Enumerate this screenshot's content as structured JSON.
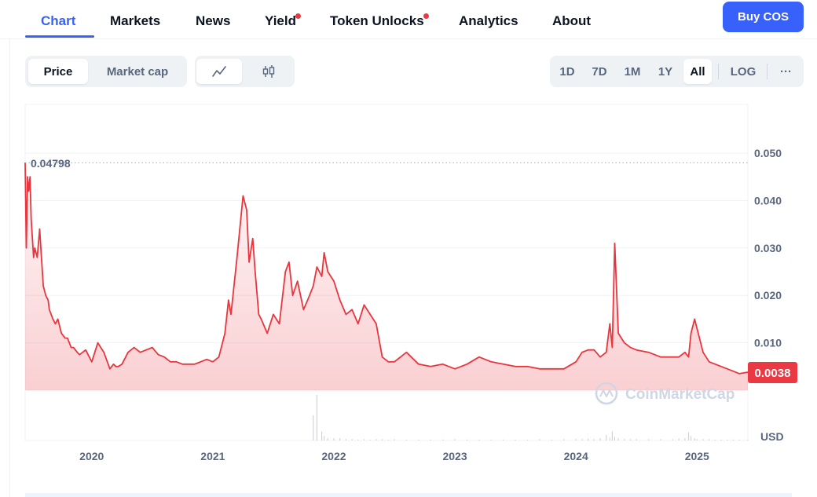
{
  "nav": {
    "tabs": [
      {
        "label": "Chart",
        "active": true,
        "dot": false
      },
      {
        "label": "Markets",
        "active": false,
        "dot": false
      },
      {
        "label": "News",
        "active": false,
        "dot": false
      },
      {
        "label": "Yield",
        "active": false,
        "dot": true
      },
      {
        "label": "Token Unlocks",
        "active": false,
        "dot": true
      },
      {
        "label": "Analytics",
        "active": false,
        "dot": false
      },
      {
        "label": "About",
        "active": false,
        "dot": false
      }
    ],
    "buy_label": "Buy COS"
  },
  "toolbar": {
    "metric_tabs": [
      {
        "label": "Price",
        "active": true
      },
      {
        "label": "Market cap",
        "active": false
      }
    ],
    "chart_types": [
      {
        "icon": "line-chart-icon",
        "active": true
      },
      {
        "icon": "candlestick-icon",
        "active": false
      }
    ],
    "ranges": [
      {
        "label": "1D",
        "active": false
      },
      {
        "label": "7D",
        "active": false
      },
      {
        "label": "1M",
        "active": false
      },
      {
        "label": "1Y",
        "active": false
      },
      {
        "label": "All",
        "active": true
      }
    ],
    "log_label": "LOG",
    "more_label": "···"
  },
  "colors": {
    "accent": "#3861fb",
    "line": "#e8363f",
    "badge": "#ea3943",
    "notification": "#ea3943"
  },
  "watermark": "CoinMarketCap",
  "chart_data": {
    "type": "area",
    "currency_label": "USD",
    "start_marker": {
      "value": 0.04798,
      "label": "0.04798"
    },
    "current_price": {
      "value": 0.0038,
      "label": "0.0038"
    },
    "ylim": [
      0,
      0.05
    ],
    "y_ticks": [
      "0.050",
      "0.040",
      "0.030",
      "0.020",
      "0.010"
    ],
    "x_ticks": [
      "2020",
      "2021",
      "2022",
      "2023",
      "2024",
      "2025"
    ],
    "x": [
      2019.45,
      2019.46,
      2019.47,
      2019.48,
      2019.49,
      2019.5,
      2019.52,
      2019.53,
      2019.55,
      2019.57,
      2019.58,
      2019.6,
      2019.62,
      2019.64,
      2019.65,
      2019.68,
      2019.7,
      2019.72,
      2019.75,
      2019.78,
      2019.8,
      2019.83,
      2019.85,
      2019.88,
      2019.9,
      2019.95,
      2020.0,
      2020.05,
      2020.1,
      2020.15,
      2020.18,
      2020.2,
      2020.22,
      2020.25,
      2020.3,
      2020.35,
      2020.4,
      2020.45,
      2020.5,
      2020.55,
      2020.6,
      2020.65,
      2020.7,
      2020.75,
      2020.8,
      2020.85,
      2020.9,
      2020.95,
      2021.0,
      2021.05,
      2021.1,
      2021.13,
      2021.15,
      2021.2,
      2021.25,
      2021.28,
      2021.3,
      2021.33,
      2021.35,
      2021.38,
      2021.4,
      2021.45,
      2021.5,
      2021.55,
      2021.6,
      2021.63,
      2021.66,
      2021.7,
      2021.75,
      2021.8,
      2021.83,
      2021.86,
      2021.9,
      2021.92,
      2021.95,
      2022.0,
      2022.05,
      2022.1,
      2022.15,
      2022.2,
      2022.25,
      2022.3,
      2022.35,
      2022.4,
      2022.45,
      2022.5,
      2022.6,
      2022.7,
      2022.8,
      2022.9,
      2023.0,
      2023.1,
      2023.2,
      2023.3,
      2023.4,
      2023.5,
      2023.6,
      2023.7,
      2023.8,
      2023.9,
      2024.0,
      2024.05,
      2024.1,
      2024.15,
      2024.2,
      2024.25,
      2024.28,
      2024.3,
      2024.32,
      2024.35,
      2024.4,
      2024.45,
      2024.5,
      2024.6,
      2024.7,
      2024.8,
      2024.85,
      2024.9,
      2024.93,
      2024.95,
      2024.98,
      2025.0,
      2025.05,
      2025.1,
      2025.15,
      2025.2,
      2025.25,
      2025.3,
      2025.35,
      2025.42
    ],
    "values": [
      0.048,
      0.03,
      0.045,
      0.042,
      0.045,
      0.036,
      0.028,
      0.03,
      0.028,
      0.034,
      0.03,
      0.022,
      0.02,
      0.019,
      0.017,
      0.015,
      0.014,
      0.015,
      0.012,
      0.011,
      0.011,
      0.009,
      0.009,
      0.008,
      0.0075,
      0.0085,
      0.006,
      0.01,
      0.008,
      0.0045,
      0.0055,
      0.005,
      0.005,
      0.0055,
      0.008,
      0.009,
      0.008,
      0.0085,
      0.009,
      0.0075,
      0.007,
      0.006,
      0.006,
      0.0055,
      0.0055,
      0.0055,
      0.006,
      0.0065,
      0.006,
      0.007,
      0.012,
      0.019,
      0.016,
      0.028,
      0.041,
      0.038,
      0.027,
      0.032,
      0.025,
      0.016,
      0.015,
      0.012,
      0.016,
      0.014,
      0.025,
      0.027,
      0.02,
      0.023,
      0.017,
      0.02,
      0.022,
      0.026,
      0.024,
      0.029,
      0.025,
      0.023,
      0.019,
      0.016,
      0.017,
      0.014,
      0.018,
      0.016,
      0.014,
      0.007,
      0.006,
      0.006,
      0.008,
      0.0055,
      0.005,
      0.0055,
      0.0045,
      0.0055,
      0.007,
      0.006,
      0.0055,
      0.005,
      0.005,
      0.0045,
      0.0045,
      0.0045,
      0.006,
      0.008,
      0.0085,
      0.0085,
      0.007,
      0.008,
      0.014,
      0.009,
      0.031,
      0.012,
      0.01,
      0.009,
      0.0085,
      0.008,
      0.007,
      0.007,
      0.007,
      0.008,
      0.007,
      0.012,
      0.015,
      0.013,
      0.008,
      0.006,
      0.0055,
      0.005,
      0.0045,
      0.004,
      0.0035,
      0.0038
    ],
    "volume": [
      0,
      0,
      0,
      0,
      0,
      0,
      0,
      0,
      0,
      0,
      0,
      0,
      0,
      0,
      0,
      0,
      0,
      0,
      0,
      0,
      0,
      0,
      0,
      0,
      0,
      0,
      0,
      0,
      0,
      0,
      0,
      0,
      0,
      0,
      0,
      0,
      0,
      0,
      0,
      0,
      0,
      0,
      0,
      0,
      0,
      0,
      0,
      0,
      0,
      0,
      0,
      0,
      0,
      0,
      0,
      0,
      0,
      0,
      0,
      0,
      0,
      0,
      0,
      0,
      0,
      0,
      0,
      0,
      0,
      0,
      0.55,
      1.0,
      0.2,
      0.1,
      0.05,
      0.05,
      0.05,
      0.03,
      0.03,
      0.02,
      0.03,
      0.02,
      0.03,
      0.03,
      0.02,
      0.03,
      0.02,
      0.02,
      0.02,
      0.02,
      0.03,
      0.02,
      0.02,
      0.02,
      0.02,
      0.02,
      0.02,
      0.03,
      0.02,
      0.03,
      0.03,
      0.03,
      0.04,
      0.03,
      0.05,
      0.12,
      0.06,
      0.2,
      0.08,
      0.05,
      0.03,
      0.03,
      0.03,
      0.03,
      0.03,
      0.03,
      0.04,
      0.05,
      0.18,
      0.1,
      0.05,
      0.03,
      0.03,
      0.03,
      0.02,
      0.02,
      0.02,
      0.02,
      0.02,
      0.02
    ]
  }
}
